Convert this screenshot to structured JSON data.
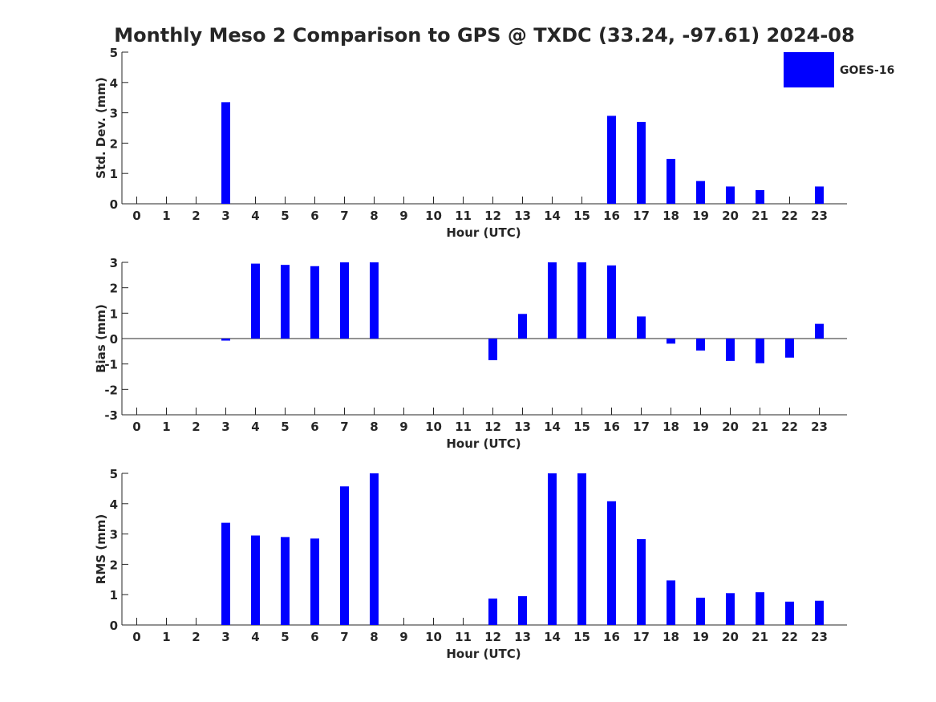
{
  "title": "Monthly Meso 2 Comparison to GPS @ TXDC (33.24, -97.61) 2024-08",
  "legend": {
    "label": "GOES-16",
    "color": "#0000ff",
    "placement": "top-right"
  },
  "chart_data": [
    {
      "type": "bar",
      "name": "std-dev",
      "ylabel": "Std. Dev. (mm)",
      "xlabel": "Hour (UTC)",
      "ylim": [
        0,
        5
      ],
      "yticks": [
        0,
        1,
        2,
        3,
        4,
        5
      ],
      "categories": [
        "0",
        "1",
        "2",
        "3",
        "4",
        "5",
        "6",
        "7",
        "8",
        "9",
        "10",
        "11",
        "12",
        "13",
        "14",
        "15",
        "16",
        "17",
        "18",
        "19",
        "20",
        "21",
        "22",
        "23"
      ],
      "values": [
        0,
        0,
        0,
        3.35,
        0,
        0,
        0,
        0,
        0,
        0,
        0,
        0,
        0,
        0,
        0,
        0,
        2.9,
        2.7,
        1.48,
        0.75,
        0.57,
        0.45,
        0,
        0.57
      ],
      "color": "#0000ff"
    },
    {
      "type": "bar",
      "name": "bias",
      "ylabel": "Bias (mm)",
      "xlabel": "Hour (UTC)",
      "ylim": [
        -3,
        3
      ],
      "yticks": [
        -3,
        -2,
        -1,
        0,
        1,
        2,
        3
      ],
      "categories": [
        "0",
        "1",
        "2",
        "3",
        "4",
        "5",
        "6",
        "7",
        "8",
        "9",
        "10",
        "11",
        "12",
        "13",
        "14",
        "15",
        "16",
        "17",
        "18",
        "19",
        "20",
        "21",
        "22",
        "23"
      ],
      "values": [
        0,
        0,
        0,
        -0.08,
        2.95,
        2.9,
        2.85,
        3.0,
        3.0,
        0,
        0,
        0,
        -0.85,
        0.97,
        3.0,
        3.0,
        2.88,
        0.87,
        -0.2,
        -0.47,
        -0.88,
        -0.97,
        -0.75,
        0.58
      ],
      "color": "#0000ff"
    },
    {
      "type": "bar",
      "name": "rms",
      "ylabel": "RMS (mm)",
      "xlabel": "Hour (UTC)",
      "ylim": [
        0,
        5
      ],
      "yticks": [
        0,
        1,
        2,
        3,
        4,
        5
      ],
      "categories": [
        "0",
        "1",
        "2",
        "3",
        "4",
        "5",
        "6",
        "7",
        "8",
        "9",
        "10",
        "11",
        "12",
        "13",
        "14",
        "15",
        "16",
        "17",
        "18",
        "19",
        "20",
        "21",
        "22",
        "23"
      ],
      "values": [
        0,
        0,
        0,
        3.37,
        2.95,
        2.9,
        2.85,
        4.57,
        5.0,
        0,
        0,
        0,
        0.87,
        0.95,
        5.0,
        5.0,
        4.08,
        2.83,
        1.47,
        0.9,
        1.05,
        1.08,
        0.77,
        0.8
      ],
      "color": "#0000ff"
    }
  ]
}
